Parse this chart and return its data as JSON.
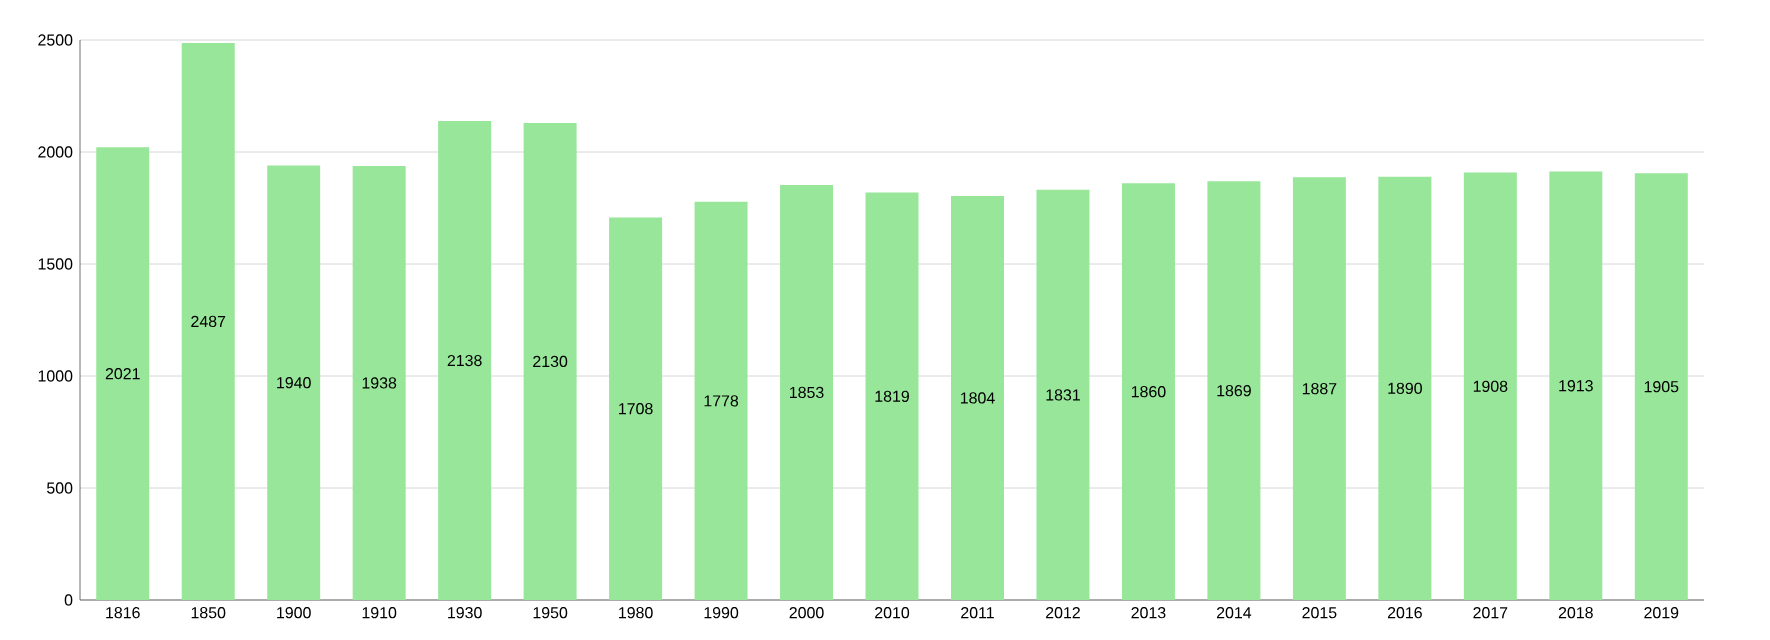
{
  "chart_data": {
    "type": "bar",
    "categories": [
      "1816",
      "1850",
      "1900",
      "1910",
      "1930",
      "1950",
      "1980",
      "1990",
      "2000",
      "2010",
      "2011",
      "2012",
      "2013",
      "2014",
      "2015",
      "2016",
      "2017",
      "2018",
      "2019"
    ],
    "values": [
      2021,
      2487,
      1940,
      1938,
      2138,
      2130,
      1708,
      1778,
      1853,
      1819,
      1804,
      1831,
      1860,
      1869,
      1887,
      1890,
      1908,
      1913,
      1905
    ],
    "color": "#98e699",
    "ylim": [
      0,
      2500
    ],
    "yticks": [
      0,
      500,
      1000,
      1500,
      2000,
      2500
    ],
    "grid": "y",
    "data_labels": true
  }
}
